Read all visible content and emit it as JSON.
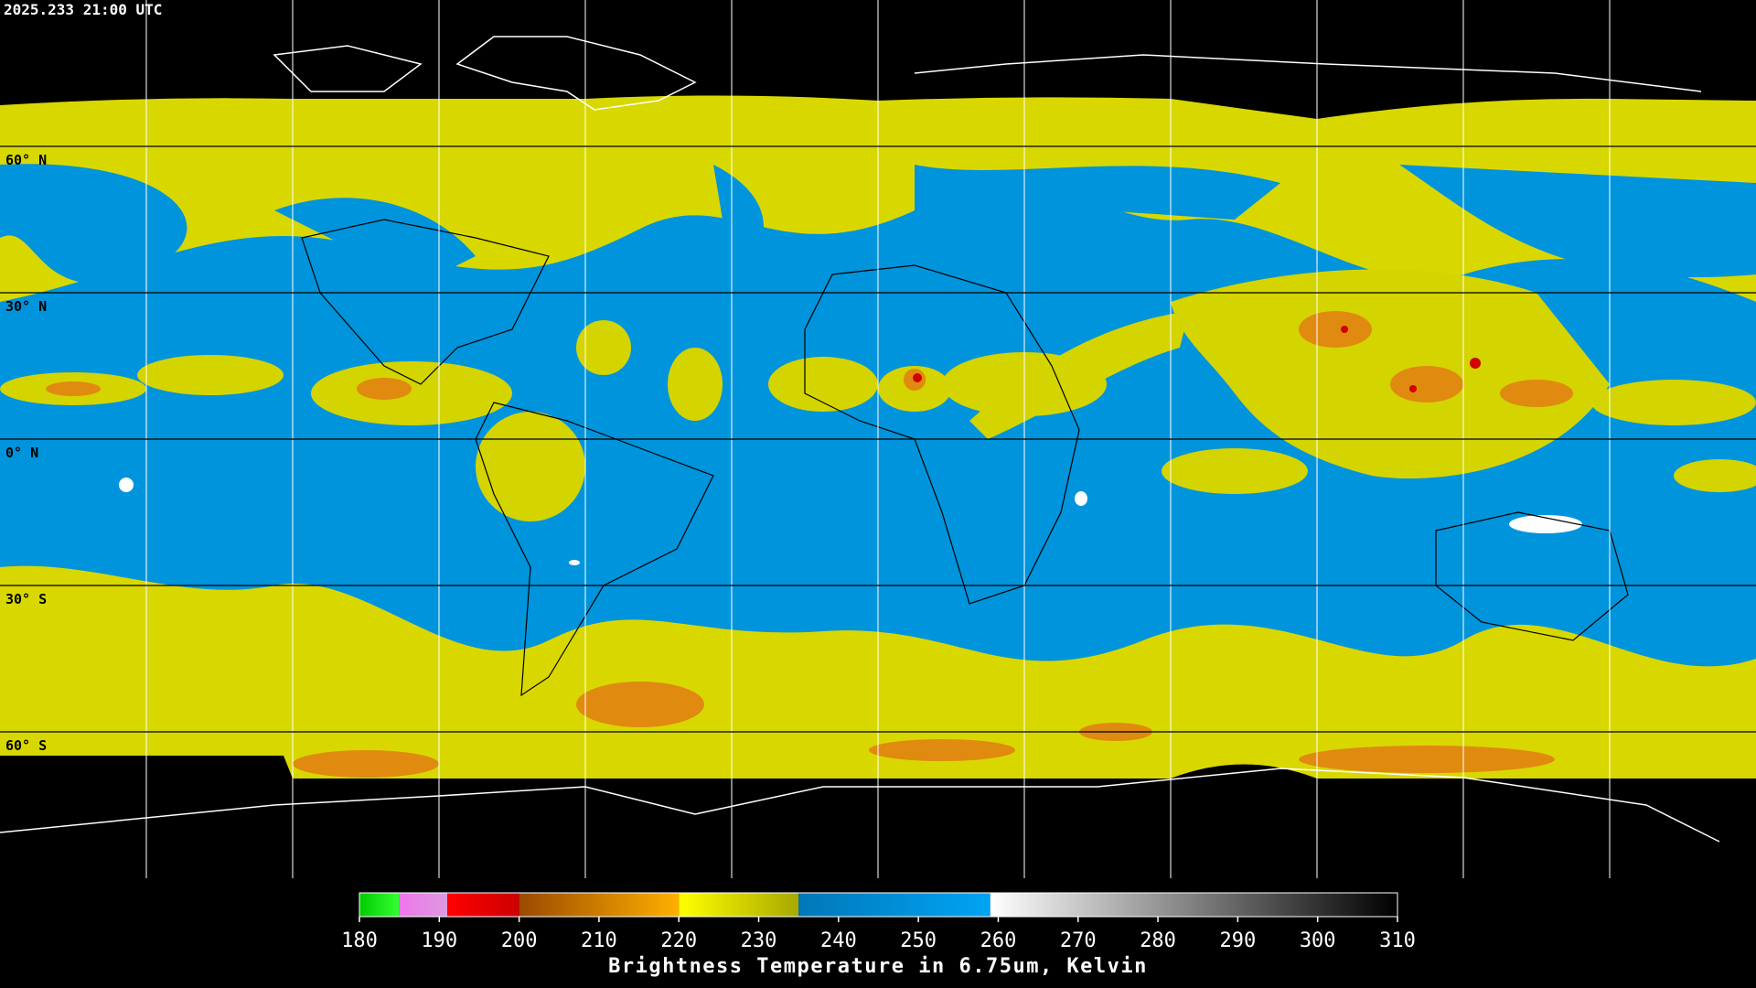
{
  "map": {
    "title": "2025.233 21:00 UTC",
    "lat_labels": [
      "60° N",
      "30° N",
      "0° N",
      "30° S",
      "60° S"
    ]
  },
  "colorbar": {
    "label": "Brightness Temperature in 6.75um, Kelvin",
    "range": [
      180,
      310
    ],
    "ticks": [
      180,
      190,
      200,
      210,
      220,
      230,
      240,
      250,
      260,
      270,
      280,
      290,
      300,
      310
    ],
    "segments": [
      {
        "start": 180,
        "end": 185,
        "colors": [
          "#00cc00",
          "#33ff33"
        ]
      },
      {
        "start": 185,
        "end": 191,
        "colors": [
          "#ee77ee",
          "#dd99dd"
        ]
      },
      {
        "start": 191,
        "end": 200,
        "colors": [
          "#ff0000",
          "#cc0000"
        ]
      },
      {
        "start": 200,
        "end": 220,
        "colors": [
          "#9a4a00",
          "#ffb000"
        ]
      },
      {
        "start": 220,
        "end": 235,
        "colors": [
          "#ffff00",
          "#a8a800"
        ]
      },
      {
        "start": 235,
        "end": 259,
        "colors": [
          "#0078b8",
          "#00a4f4"
        ]
      },
      {
        "start": 259,
        "end": 310,
        "colors": [
          "#ffffff",
          "#000000"
        ]
      }
    ]
  }
}
